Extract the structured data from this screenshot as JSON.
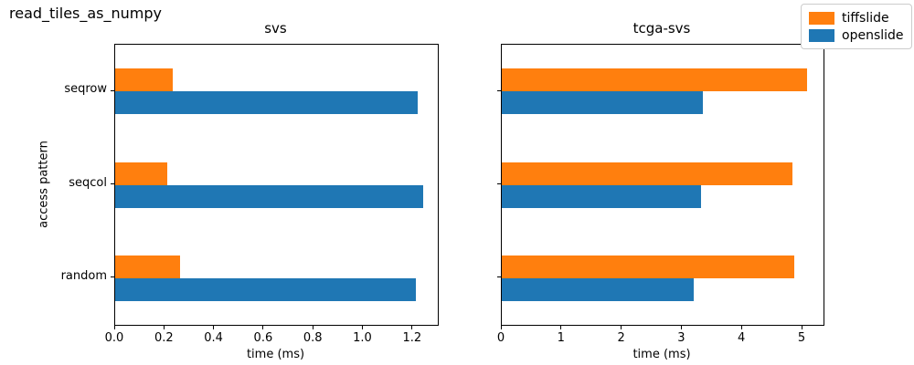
{
  "figure": {
    "suptitle": "read_tiles_as_numpy",
    "legend": {
      "items": [
        {
          "label": "tiffslide",
          "color": "#ff7f0e"
        },
        {
          "label": "openslide",
          "color": "#1f77b4"
        }
      ]
    }
  },
  "chart_data": [
    {
      "type": "bar",
      "orientation": "horizontal",
      "title": "svs",
      "categories": [
        "seqrow",
        "seqcol",
        "random"
      ],
      "series": [
        {
          "name": "tiffslide",
          "color": "#ff7f0e",
          "values": [
            0.23,
            0.21,
            0.26
          ]
        },
        {
          "name": "openslide",
          "color": "#1f77b4",
          "values": [
            1.22,
            1.24,
            1.21
          ]
        }
      ],
      "xlabel": "time (ms)",
      "ylabel": "access pattern",
      "xlim": [
        0,
        1.3
      ],
      "xticks": [
        "0.0",
        "0.2",
        "0.4",
        "0.6",
        "0.8",
        "1.0",
        "1.2"
      ],
      "grid": false,
      "legend_position": "figure-top-right"
    },
    {
      "type": "bar",
      "orientation": "horizontal",
      "title": "tcga-svs",
      "categories": [
        "seqrow",
        "seqcol",
        "random"
      ],
      "series": [
        {
          "name": "tiffslide",
          "color": "#ff7f0e",
          "values": [
            5.08,
            4.84,
            4.87
          ]
        },
        {
          "name": "openslide",
          "color": "#1f77b4",
          "values": [
            3.34,
            3.31,
            3.19
          ]
        }
      ],
      "xlabel": "time (ms)",
      "ylabel": "",
      "xlim": [
        0,
        5.35
      ],
      "xticks": [
        "0",
        "1",
        "2",
        "3",
        "4",
        "5"
      ],
      "grid": false,
      "legend_position": "figure-top-right"
    }
  ]
}
